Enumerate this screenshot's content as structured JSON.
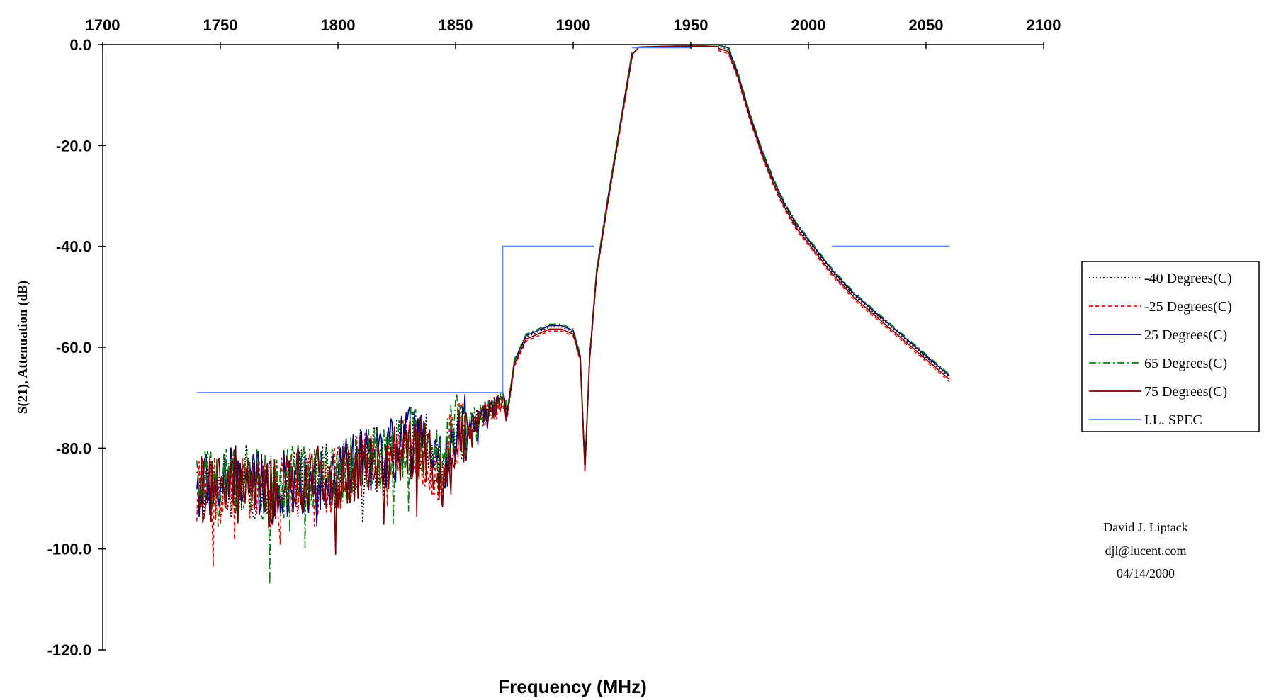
{
  "chart_data": {
    "type": "line",
    "title": "",
    "xlabel": "Frequency (MHz)",
    "ylabel": "S(21), Attenuation (dB)",
    "xlim": [
      1700,
      2100
    ],
    "ylim": [
      -120,
      0
    ],
    "x_ticks": [
      "1700",
      "1750",
      "1800",
      "1850",
      "1900",
      "1950",
      "2000",
      "2050",
      "2100"
    ],
    "y_ticks": [
      "0.0",
      "-20.0",
      "-40.0",
      "-60.0",
      "-80.0",
      "-100.0",
      "-120.0"
    ],
    "x_axis_position": "top",
    "grid": false,
    "legend_position": "right",
    "series": [
      {
        "name": "-40 Degrees(C)",
        "color": "#000000",
        "style": "dotted",
        "offset": 0.0
      },
      {
        "name": "-25 Degrees(C)",
        "color": "#ff0000",
        "style": "dashed",
        "offset": -0.8
      },
      {
        "name": "25 Degrees(C)",
        "color": "#000080",
        "style": "solid",
        "offset": 0.3
      },
      {
        "name": "65 Degrees(C)",
        "color": "#008000",
        "style": "dashdot",
        "offset": 0.6
      },
      {
        "name": "75 Degrees(C)",
        "color": "#800000",
        "style": "solid",
        "offset": -0.4
      }
    ],
    "base_curve": {
      "x": [
        1740,
        1750,
        1760,
        1770,
        1780,
        1790,
        1800,
        1810,
        1820,
        1830,
        1838,
        1845,
        1848,
        1855,
        1860,
        1865,
        1870,
        1872,
        1875,
        1880,
        1885,
        1890,
        1895,
        1900,
        1903,
        1905,
        1907,
        1910,
        1915,
        1920,
        1925,
        1928,
        1935,
        1945,
        1955,
        1962,
        1966,
        1970,
        1975,
        1980,
        1985,
        1990,
        1995,
        2000,
        2010,
        2020,
        2030,
        2040,
        2050,
        2060
      ],
      "y": [
        -88,
        -88,
        -86,
        -89,
        -87,
        -86,
        -85,
        -83,
        -82,
        -79,
        -80,
        -86,
        -77,
        -76,
        -74,
        -72,
        -71,
        -73,
        -63,
        -58,
        -57,
        -56,
        -56,
        -57,
        -62,
        -84,
        -62,
        -45,
        -30,
        -16,
        -2,
        -0.5,
        -0.4,
        -0.3,
        -0.3,
        -0.4,
        -1,
        -6,
        -14,
        -21,
        -27,
        -32,
        -36,
        -39,
        -45,
        -50,
        -54,
        -58,
        -62,
        -66
      ]
    },
    "spec_segments": [
      {
        "name": "I.L. SPEC",
        "color": "#4f81ff",
        "points": [
          [
            1740,
            -69
          ],
          [
            1870,
            -69
          ],
          [
            1870,
            -40
          ],
          [
            1909,
            -40
          ]
        ]
      },
      {
        "name": "I.L. SPEC",
        "color": "#4f81ff",
        "points": [
          [
            1925,
            -0.6
          ],
          [
            1950,
            -0.6
          ]
        ]
      },
      {
        "name": "I.L. SPEC",
        "color": "#4f81ff",
        "points": [
          [
            2010,
            -40
          ],
          [
            2060,
            -40
          ]
        ]
      }
    ],
    "legend_entries": [
      "-40 Degrees(C)",
      "-25 Degrees(C)",
      "25 Degrees(C)",
      "65 Degrees(C)",
      "75 Degrees(C)",
      "I.L. SPEC"
    ]
  },
  "annotation": {
    "author": "David J. Liptack",
    "email": "djl@lucent.com",
    "date": "04/14/2000"
  }
}
